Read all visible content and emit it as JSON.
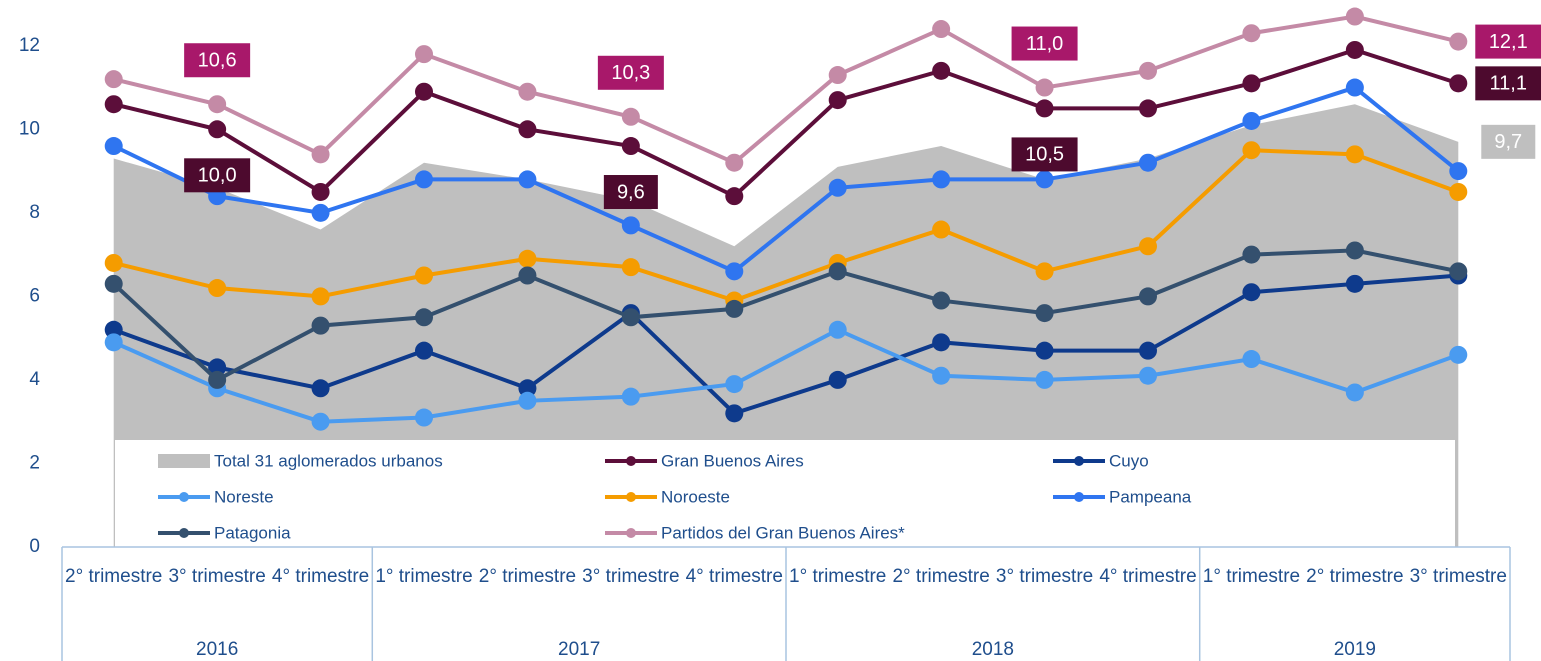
{
  "chart_data": {
    "type": "line",
    "categories": [
      "2° trimestre",
      "3° trimestre",
      "4° trimestre",
      "1° trimestre",
      "2° trimestre",
      "3° trimestre",
      "4° trimestre",
      "1° trimestre",
      "2° trimestre",
      "3° trimestre",
      "4° trimestre",
      "1° trimestre",
      "2° trimestre",
      "3° trimestre"
    ],
    "category_years": [
      "2016",
      "2016",
      "2016",
      "2017",
      "2017",
      "2017",
      "2017",
      "2018",
      "2018",
      "2018",
      "2018",
      "2019",
      "2019",
      "2019"
    ],
    "ylim": [
      0,
      13
    ],
    "yticks": [
      0,
      2,
      4,
      6,
      8,
      10,
      12
    ],
    "series": [
      {
        "name": "Total 31 aglomerados urbanos",
        "color": "#bfbfbf",
        "area": true,
        "label_color": "#bfbfbf",
        "values": [
          9.3,
          8.6,
          7.6,
          9.2,
          8.8,
          8.3,
          7.2,
          9.1,
          9.6,
          8.8,
          9.3,
          10.1,
          10.6,
          9.7
        ],
        "value_labels": [
          null,
          null,
          null,
          null,
          null,
          null,
          null,
          null,
          null,
          null,
          null,
          null,
          null,
          "9,7"
        ]
      },
      {
        "name": "Gran Buenos Aires",
        "color": "#5c0e3a",
        "label_color": "#4d0a2e",
        "values": [
          10.6,
          10.0,
          8.5,
          10.9,
          10.0,
          9.6,
          8.4,
          10.7,
          11.4,
          10.5,
          10.5,
          11.1,
          11.9,
          11.1
        ],
        "value_labels": [
          null,
          "10,0",
          null,
          null,
          null,
          "9,6",
          null,
          null,
          null,
          "10,5",
          null,
          null,
          null,
          "11,1"
        ]
      },
      {
        "name": "Cuyo",
        "color": "#0e3a8c",
        "values": [
          5.2,
          4.3,
          3.8,
          4.7,
          3.8,
          5.6,
          3.2,
          4.0,
          4.9,
          4.7,
          4.7,
          6.1,
          6.3,
          6.5
        ]
      },
      {
        "name": "Noreste",
        "color": "#4a9bf0",
        "values": [
          4.9,
          3.8,
          3.0,
          3.1,
          3.5,
          3.6,
          3.9,
          5.2,
          4.1,
          4.0,
          4.1,
          4.5,
          3.7,
          4.6
        ]
      },
      {
        "name": "Noroeste",
        "color": "#f59c00",
        "values": [
          6.8,
          6.2,
          6.0,
          6.5,
          6.9,
          6.7,
          5.9,
          6.8,
          7.6,
          6.6,
          7.2,
          9.5,
          9.4,
          8.5
        ]
      },
      {
        "name": "Pampeana",
        "color": "#2f75f0",
        "values": [
          9.6,
          8.4,
          8.0,
          8.8,
          8.8,
          7.7,
          6.6,
          8.6,
          8.8,
          8.8,
          9.2,
          10.2,
          11.0,
          9.0
        ]
      },
      {
        "name": "Patagonia",
        "color": "#34506e",
        "values": [
          6.3,
          4.0,
          5.3,
          5.5,
          6.5,
          5.5,
          5.7,
          6.6,
          5.9,
          5.6,
          6.0,
          7.0,
          7.1,
          6.6
        ]
      },
      {
        "name": "Partidos del Gran Buenos Aires*",
        "color": "#c48aa6",
        "label_color": "#a8186a",
        "values": [
          11.2,
          10.6,
          9.4,
          11.8,
          10.9,
          10.3,
          9.2,
          11.3,
          12.4,
          11.0,
          11.4,
          12.3,
          12.7,
          12.1
        ],
        "value_labels": [
          null,
          "10,6",
          null,
          null,
          null,
          "10,3",
          null,
          null,
          null,
          "11,0",
          null,
          null,
          null,
          "12,1"
        ]
      }
    ]
  }
}
